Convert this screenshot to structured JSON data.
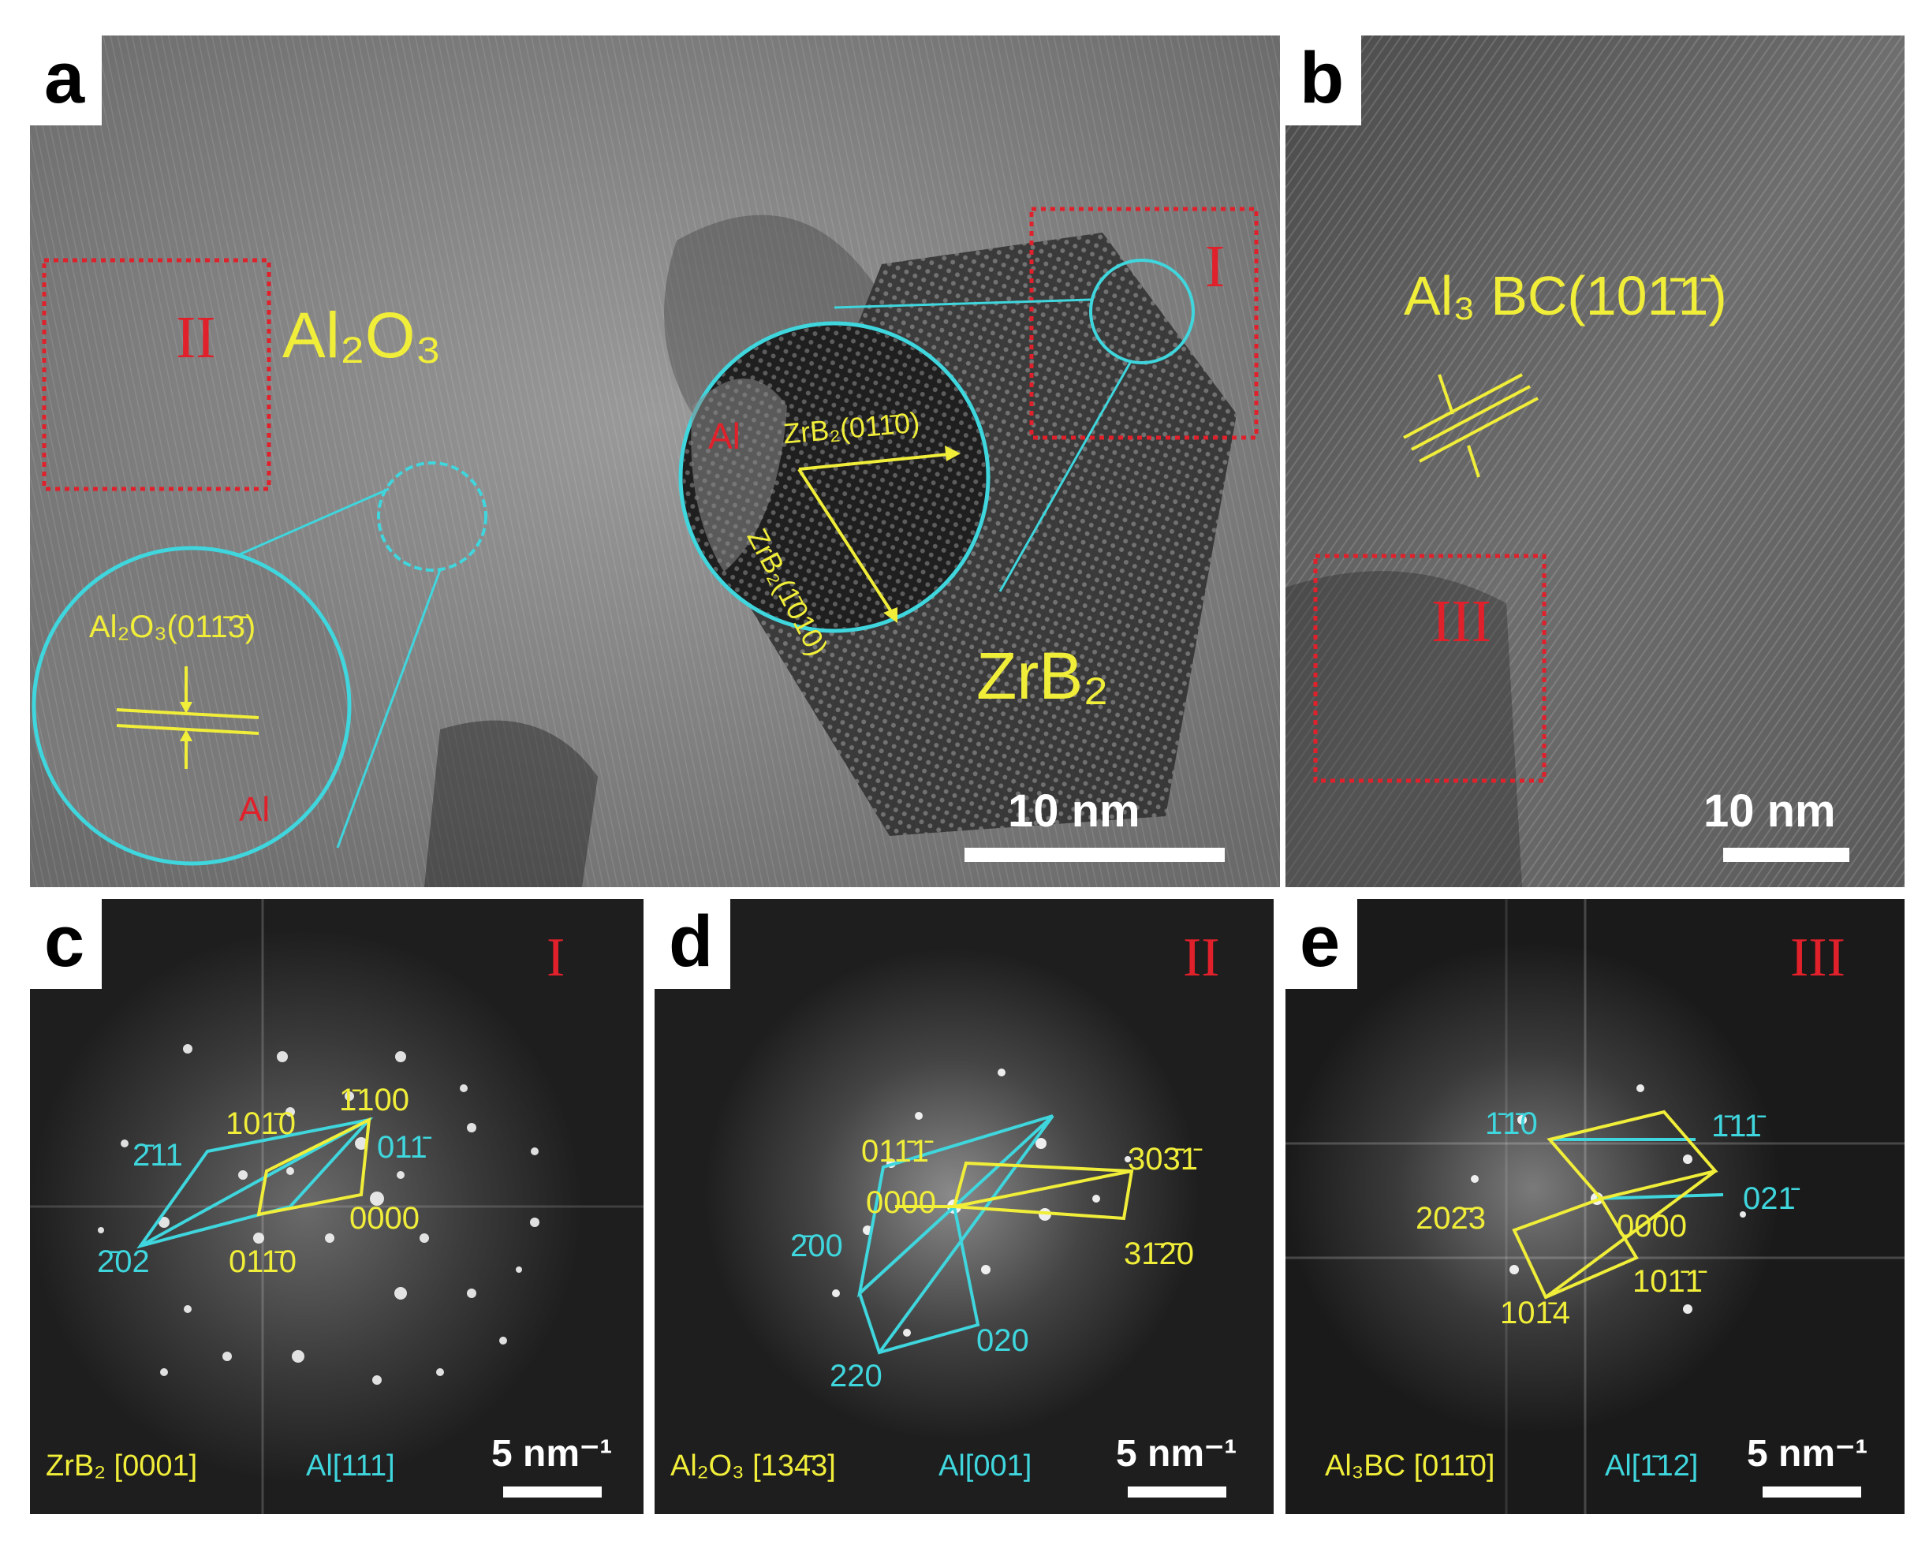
{
  "panels": {
    "a": {
      "letter": "a",
      "phase_main": "Al₂O₃",
      "phase_zr": "ZrB₂",
      "region_I": "I",
      "region_II": "II",
      "inset_alumina_plane": "Al₂O₃(011̄3̄)",
      "inset_alumina_al": "Al",
      "inset_zr_al": "Al",
      "inset_zr_plane_1": "ZrB₂(011̄0)",
      "inset_zr_plane_2": "ZrB₂(1̄010)",
      "scale": "10 nm"
    },
    "b": {
      "letter": "b",
      "plane": "Al₃ BC(101̄1̄)",
      "region_III": "III",
      "scale": "10 nm"
    },
    "c": {
      "letter": "c",
      "region": "I",
      "spots": [
        "1̄100",
        "101̄0",
        "011̄",
        "2̄11",
        "0000",
        "2̄02",
        "011̄0"
      ],
      "zone_zr": "ZrB₂ [0001]",
      "zone_al": "Al[111]",
      "scale": "5 nm⁻¹"
    },
    "d": {
      "letter": "d",
      "region": "II",
      "spots": [
        "011̄1̄",
        "303̄1̄",
        "0000",
        "31̄2̄0",
        "2̄00",
        "220",
        "020"
      ],
      "zone_a": "Al₂O₃ [134̄3]",
      "zone_b": "Al[001]",
      "scale": "5 nm⁻¹"
    },
    "e": {
      "letter": "e",
      "region": "III",
      "spots": [
        "1̄1̄0",
        "1̄11̄",
        "02̄3",
        "021̄",
        "0000",
        "101̄1̄",
        "101̄4"
      ],
      "spot_2023": "202̄3",
      "zone_a": "Al₃BC [011̄0]",
      "zone_b": "Al[1̄12]",
      "scale": "5 nm⁻¹"
    }
  },
  "colors": {
    "label_yellow": "#f1ee3a",
    "label_cyan": "#3fd6dd",
    "label_red": "#e0202a",
    "box_red": "#e0202a"
  }
}
